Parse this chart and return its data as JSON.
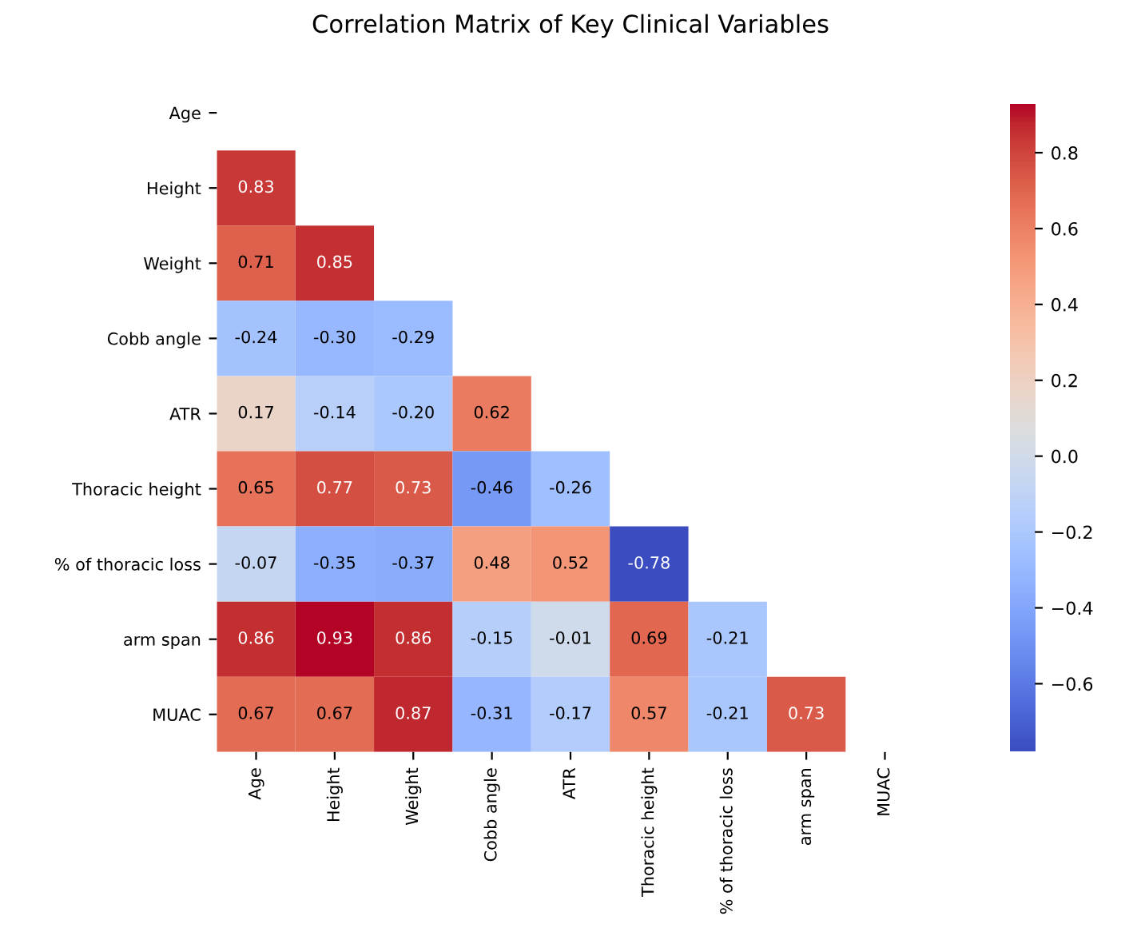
{
  "chart_data": {
    "type": "heatmap",
    "title": "Correlation Matrix of Key Clinical Variables",
    "categories": [
      "Age",
      "Height",
      "Weight",
      "Cobb angle",
      "ATR",
      "Thoracic height",
      "% of thoracic loss",
      "arm span",
      "MUAC"
    ],
    "y_categories": [
      "Age",
      "Height",
      "Weight",
      "Cobb angle",
      "ATR",
      "Thoracic height",
      "% of thoracic loss",
      "arm span",
      "MUAC"
    ],
    "cells": [
      [
        null,
        null,
        null,
        null,
        null,
        null,
        null,
        null,
        null
      ],
      [
        0.83,
        null,
        null,
        null,
        null,
        null,
        null,
        null,
        null
      ],
      [
        0.71,
        0.85,
        null,
        null,
        null,
        null,
        null,
        null,
        null
      ],
      [
        -0.24,
        -0.3,
        -0.29,
        null,
        null,
        null,
        null,
        null,
        null
      ],
      [
        0.17,
        -0.14,
        -0.2,
        0.62,
        null,
        null,
        null,
        null,
        null
      ],
      [
        0.65,
        0.77,
        0.73,
        -0.46,
        -0.26,
        null,
        null,
        null,
        null
      ],
      [
        -0.07,
        -0.35,
        -0.37,
        0.48,
        0.52,
        -0.78,
        null,
        null,
        null
      ],
      [
        0.86,
        0.93,
        0.86,
        -0.15,
        -0.01,
        0.69,
        -0.21,
        null,
        null
      ],
      [
        0.67,
        0.67,
        0.87,
        -0.31,
        -0.17,
        0.57,
        -0.21,
        0.73,
        null
      ]
    ],
    "cell_labels": [
      [
        null,
        null,
        null,
        null,
        null,
        null,
        null,
        null,
        null
      ],
      [
        "0.83",
        null,
        null,
        null,
        null,
        null,
        null,
        null,
        null
      ],
      [
        "0.71",
        "0.85",
        null,
        null,
        null,
        null,
        null,
        null,
        null
      ],
      [
        "-0.24",
        "-0.30",
        "-0.29",
        null,
        null,
        null,
        null,
        null,
        null
      ],
      [
        "0.17",
        "-0.14",
        "-0.20",
        "0.62",
        null,
        null,
        null,
        null,
        null
      ],
      [
        "0.65",
        "0.77",
        "0.73",
        "-0.46",
        "-0.26",
        null,
        null,
        null,
        null
      ],
      [
        "-0.07",
        "-0.35",
        "-0.37",
        "0.48",
        "0.52",
        "-0.78",
        null,
        null,
        null
      ],
      [
        "0.86",
        "0.93",
        "0.86",
        "-0.15",
        "-0.01",
        "0.69",
        "-0.21",
        null,
        null
      ],
      [
        "0.67",
        "0.67",
        "0.87",
        "-0.31",
        "-0.17",
        "0.57",
        "-0.21",
        "0.73",
        null
      ]
    ],
    "clim": [
      -0.78,
      0.93
    ],
    "cticks": [
      {
        "value": -0.6,
        "label": "−0.6"
      },
      {
        "value": -0.4,
        "label": "−0.4"
      },
      {
        "value": -0.2,
        "label": "−0.2"
      },
      {
        "value": 0.0,
        "label": "0.0"
      },
      {
        "value": 0.2,
        "label": "0.2"
      },
      {
        "value": 0.4,
        "label": "0.4"
      },
      {
        "value": 0.6,
        "label": "0.6"
      },
      {
        "value": 0.8,
        "label": "0.8"
      }
    ],
    "data_labels": true
  }
}
